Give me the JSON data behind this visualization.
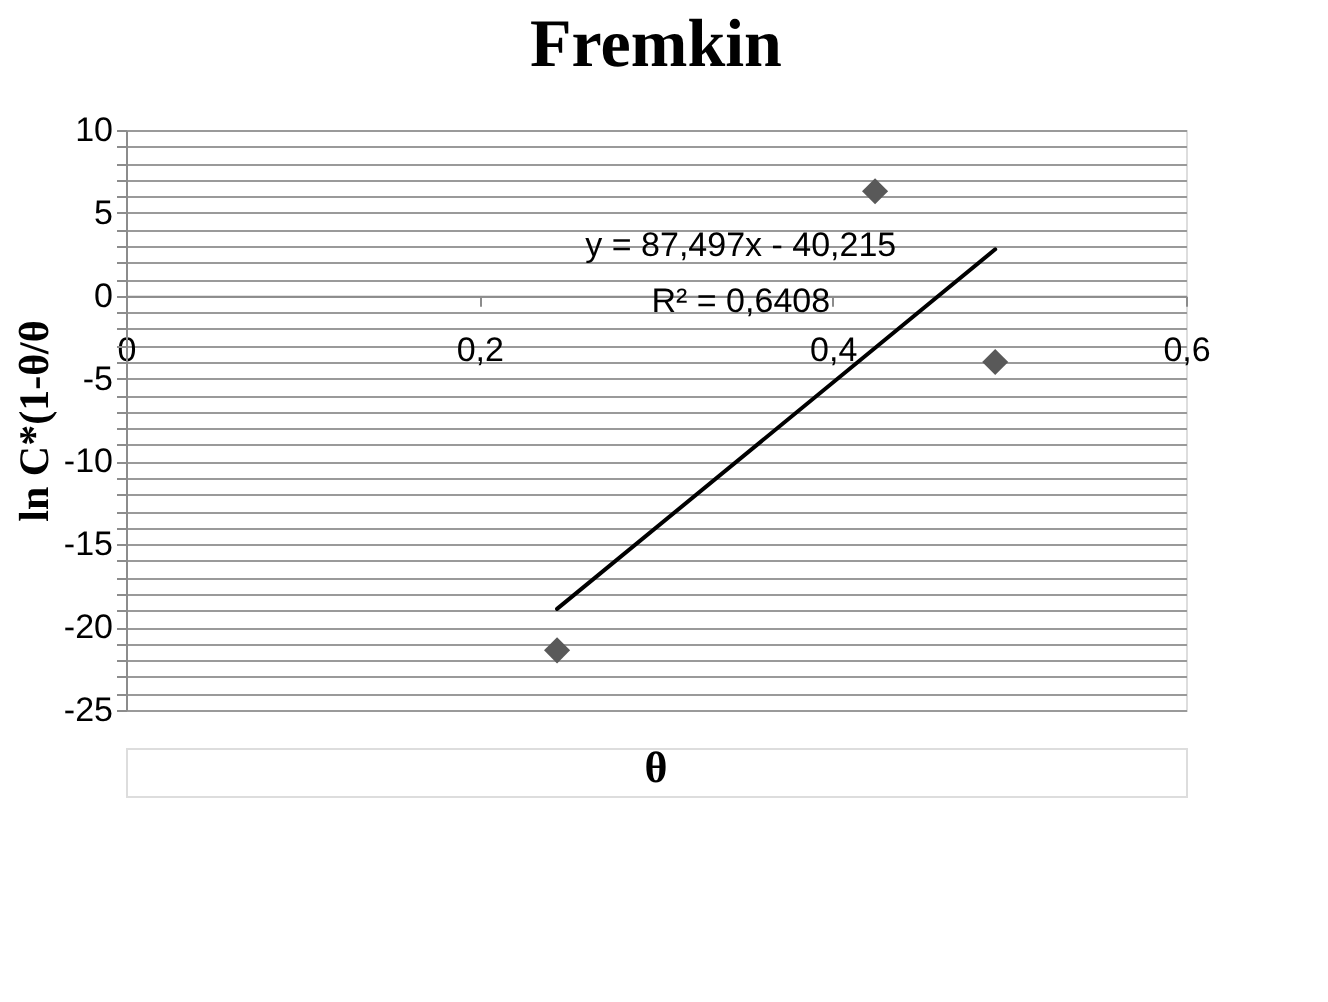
{
  "chart_data": {
    "type": "scatter",
    "title": "Fremkin",
    "xlabel": "θ",
    "ylabel": "ln C*(1-θ/θ",
    "xlim": [
      0,
      0.6
    ],
    "xticks": [
      0,
      {
        "value": 0.2,
        "label": "0,2"
      },
      {
        "value": 0.4,
        "label": "0,4"
      },
      {
        "value": 0.6,
        "label": "0,6"
      }
    ],
    "ylim": [
      -25,
      10
    ],
    "yticks": [
      -25,
      {
        "value": -24,
        "label": null
      },
      {
        "value": -23,
        "label": null
      },
      {
        "value": -22,
        "label": null
      },
      {
        "value": -21,
        "label": null
      },
      -20,
      {
        "value": -19,
        "label": null
      },
      {
        "value": -18,
        "label": null
      },
      {
        "value": -17,
        "label": null
      },
      {
        "value": -16,
        "label": null
      },
      -15,
      {
        "value": -14,
        "label": null
      },
      {
        "value": -13,
        "label": null
      },
      {
        "value": -12,
        "label": null
      },
      {
        "value": -11,
        "label": null
      },
      -10,
      {
        "value": -9,
        "label": null
      },
      {
        "value": -8,
        "label": null
      },
      {
        "value": -7,
        "label": null
      },
      {
        "value": -6,
        "label": null
      },
      -5,
      {
        "value": -4,
        "label": null
      },
      {
        "value": -3,
        "label": null
      },
      {
        "value": -2,
        "label": null
      },
      {
        "value": -1,
        "label": null
      },
      0,
      {
        "value": 1,
        "label": null
      },
      {
        "value": 2,
        "label": null
      },
      {
        "value": 3,
        "label": null
      },
      {
        "value": 4,
        "label": null
      },
      5,
      {
        "value": 6,
        "label": null
      },
      {
        "value": 7,
        "label": null
      },
      {
        "value": 8,
        "label": null
      },
      {
        "value": 9,
        "label": null
      },
      10
    ],
    "grid": "y",
    "series": [
      {
        "color": "#595959",
        "marker": "diamond",
        "x": [
          0.244,
          0.424,
          0.492
        ],
        "values": [
          -21.4,
          6.3,
          -4.0
        ]
      },
      {
        "type": "line",
        "color": "#000000",
        "marker": "none",
        "line_style": "solid",
        "x": [
          0.244,
          0.492
        ],
        "values": [
          -18.9,
          2.8
        ]
      }
    ],
    "annotations": [
      "y = 87,497x - 40,215",
      "R² = 0,6408"
    ]
  }
}
